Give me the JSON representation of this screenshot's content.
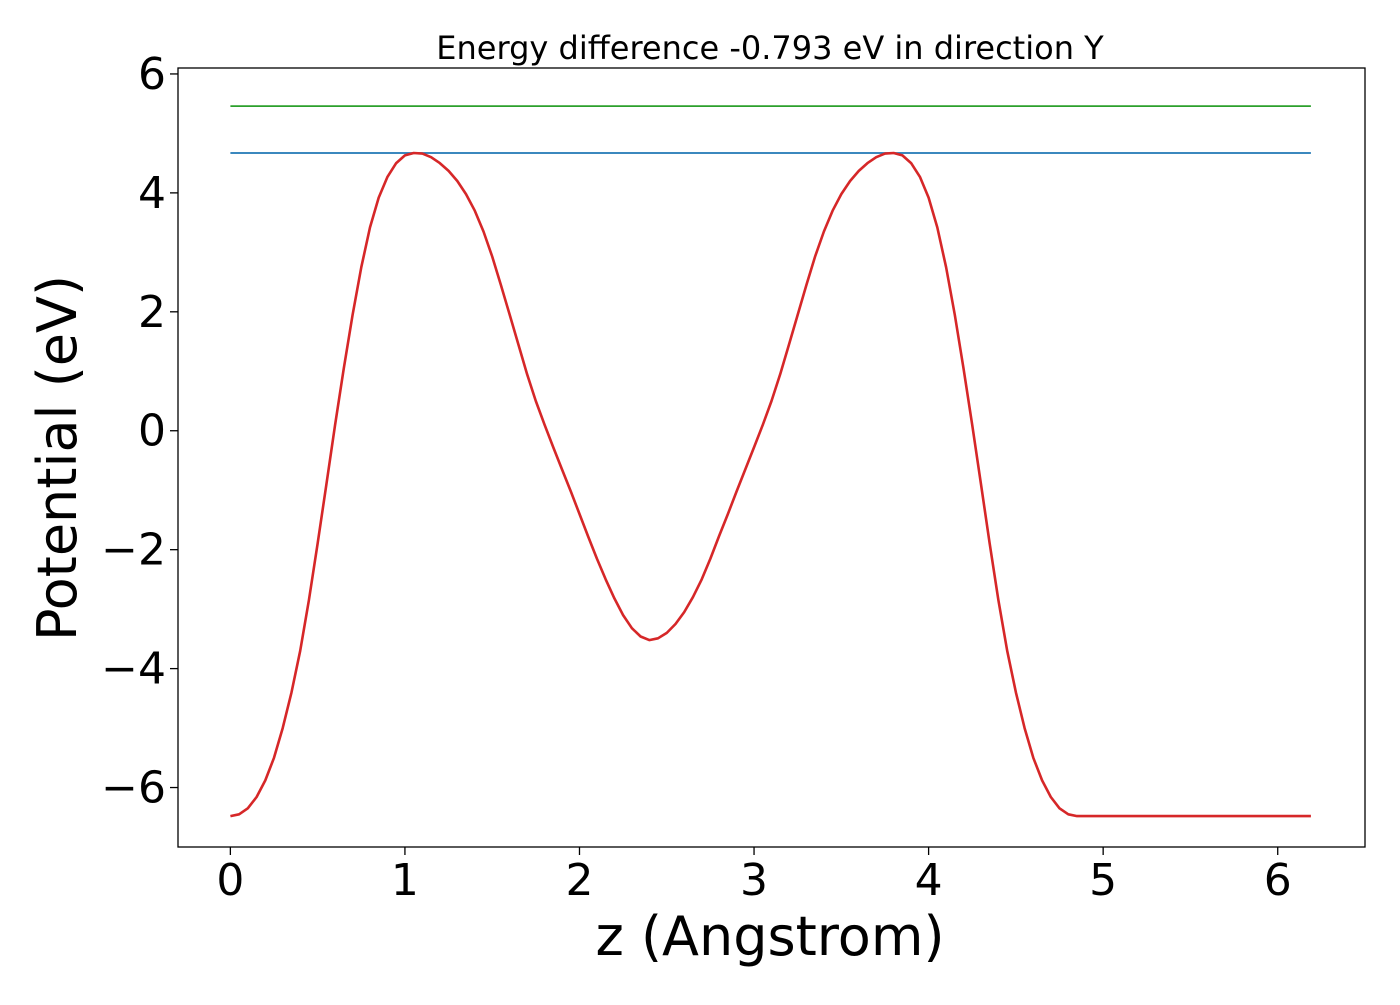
{
  "chart_data": {
    "type": "line",
    "title": "Energy difference -0.793 eV in direction Y",
    "xlabel": "z (Angstrom)",
    "ylabel": "Potential (eV)",
    "xlim": [
      -0.3,
      6.5
    ],
    "ylim": [
      -7.0,
      6.1
    ],
    "grid": false,
    "x_ticks": [
      0,
      1,
      2,
      3,
      4,
      5,
      6
    ],
    "x_tick_labels": [
      "0",
      "1",
      "2",
      "3",
      "4",
      "5",
      "6"
    ],
    "y_ticks": [
      -6,
      -4,
      -2,
      0,
      2,
      4,
      6
    ],
    "y_tick_labels": [
      "−6",
      "−4",
      "−2",
      "0",
      "2",
      "4",
      "6"
    ],
    "series": [
      {
        "color": "#2ca02c",
        "x": [
          0.0,
          6.19
        ],
        "y": [
          5.46,
          5.46
        ]
      },
      {
        "color": "#1f77b4",
        "x": [
          0.0,
          6.19
        ],
        "y": [
          4.67,
          4.67
        ]
      },
      {
        "color": "#d62728",
        "x": [
          0.0,
          0.05,
          0.1,
          0.15,
          0.2,
          0.25,
          0.3,
          0.35,
          0.4,
          0.45,
          0.5,
          0.55,
          0.6,
          0.65,
          0.7,
          0.75,
          0.8,
          0.85,
          0.9,
          0.95,
          1.0,
          1.05,
          1.1,
          1.15,
          1.2,
          1.25,
          1.3,
          1.35,
          1.4,
          1.45,
          1.5,
          1.55,
          1.6,
          1.65,
          1.7,
          1.75,
          1.8,
          1.85,
          1.9,
          1.95,
          2.0,
          2.05,
          2.1,
          2.15,
          2.2,
          2.25,
          2.3,
          2.35,
          2.4,
          2.45,
          2.5,
          2.55,
          2.6,
          2.65,
          2.7,
          2.75,
          2.8,
          2.85,
          2.9,
          2.95,
          3.0,
          3.05,
          3.1,
          3.15,
          3.2,
          3.25,
          3.3,
          3.35,
          3.4,
          3.45,
          3.5,
          3.55,
          3.6,
          3.65,
          3.7,
          3.75,
          3.8,
          3.85,
          3.9,
          3.95,
          4.0,
          4.05,
          4.1,
          4.15,
          4.2,
          4.25,
          4.3,
          4.35,
          4.4,
          4.45,
          4.5,
          4.55,
          4.6,
          4.65,
          4.7,
          4.75,
          4.8,
          4.85,
          4.9,
          4.95,
          5.0,
          5.05,
          5.1,
          5.15,
          5.2,
          5.25,
          5.3,
          5.35,
          5.4,
          5.45,
          5.5,
          5.55,
          5.6,
          5.65,
          5.7,
          5.75,
          5.8,
          5.85,
          5.9,
          5.95,
          6.0,
          6.05,
          6.1,
          6.15,
          6.19
        ],
        "y": [
          -6.48,
          -6.45,
          -6.35,
          -6.16,
          -5.88,
          -5.5,
          -5.0,
          -4.4,
          -3.7,
          -2.85,
          -1.9,
          -0.9,
          0.1,
          1.05,
          1.95,
          2.75,
          3.42,
          3.92,
          4.27,
          4.5,
          4.63,
          4.67,
          4.66,
          4.6,
          4.5,
          4.37,
          4.2,
          3.98,
          3.7,
          3.35,
          2.93,
          2.45,
          1.95,
          1.45,
          0.95,
          0.5,
          0.1,
          -0.28,
          -0.65,
          -1.02,
          -1.4,
          -1.78,
          -2.15,
          -2.5,
          -2.82,
          -3.1,
          -3.32,
          -3.46,
          -3.52,
          -3.49,
          -3.4,
          -3.25,
          -3.05,
          -2.8,
          -2.5,
          -2.15,
          -1.77,
          -1.4,
          -1.02,
          -0.65,
          -0.28,
          0.1,
          0.5,
          0.95,
          1.45,
          1.95,
          2.45,
          2.93,
          3.35,
          3.7,
          3.98,
          4.2,
          4.37,
          4.5,
          4.6,
          4.66,
          4.67,
          4.63,
          4.5,
          4.27,
          3.92,
          3.42,
          2.75,
          1.95,
          1.05,
          0.1,
          -0.9,
          -1.9,
          -2.85,
          -3.7,
          -4.4,
          -5.0,
          -5.5,
          -5.88,
          -6.16,
          -6.35,
          -6.45,
          -6.48,
          -6.48,
          -6.48,
          -6.48,
          -6.48,
          -6.48,
          -6.48,
          -6.48,
          -6.48,
          -6.48,
          -6.48,
          -6.48,
          -6.48,
          -6.48,
          -6.48,
          -6.48,
          -6.48,
          -6.48,
          -6.48,
          -6.48,
          -6.48,
          -6.48,
          -6.48,
          -6.48,
          -6.48,
          -6.48,
          -6.48,
          -6.48
        ]
      }
    ]
  }
}
